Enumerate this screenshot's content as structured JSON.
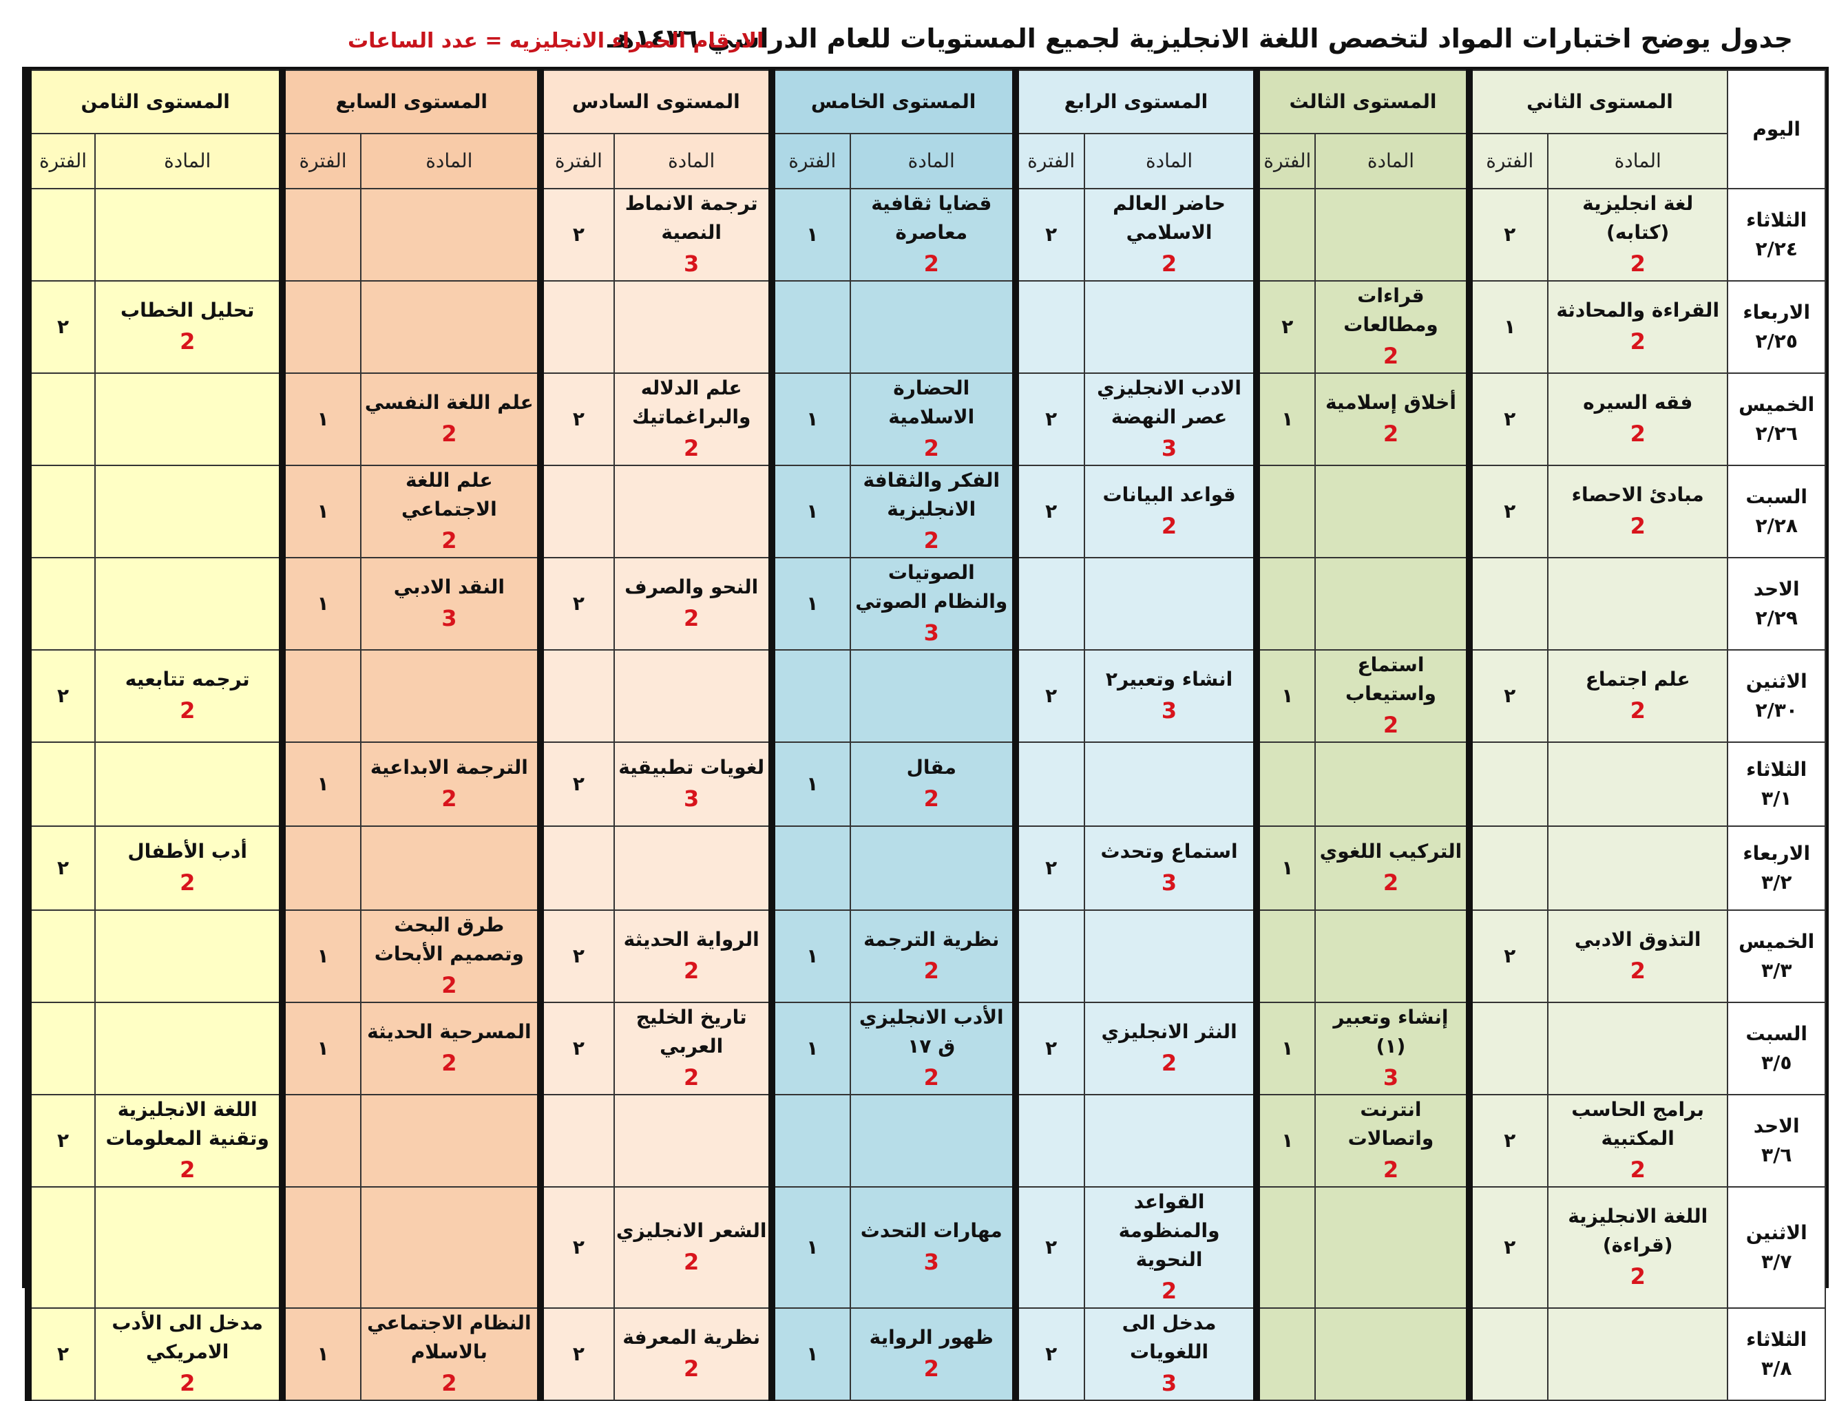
{
  "title": "جدول يوضح اختبارات المواد لتخصص اللغة الانجليزية لجميع المستويات للعام الدراسي ١٤٣٦هـ",
  "note": "الارقام الحمراء الانجليزيه = عدد الساعات",
  "day_header": "اليوم",
  "subject_header": "المادة",
  "period_header": "الفترة",
  "levels": [
    "المستوى الثاني",
    "المستوى الثالث",
    "المستوى الرابع",
    "المستوى الخامس",
    "المستوى السادس",
    "المستوى السابع",
    "المستوى الثامن"
  ],
  "rows": [
    {
      "day": "الثلاثاء",
      "date": "٢/٢٤",
      "cells": [
        {
          "s": "لغة انجليزية (كتابه)",
          "h": "2",
          "p": "٢"
        },
        {
          "s": "",
          "h": "",
          "p": ""
        },
        {
          "s": "حاضر العالم الاسلامي",
          "h": "2",
          "p": "٢"
        },
        {
          "s": "قضايا ثقافية معاصرة",
          "h": "2",
          "p": "١"
        },
        {
          "s": "ترجمة الانماط النصية",
          "h": "3",
          "p": "٢"
        },
        {
          "s": "",
          "h": "",
          "p": ""
        },
        {
          "s": "",
          "h": "",
          "p": ""
        }
      ]
    },
    {
      "day": "الاربعاء",
      "date": "٢/٢٥",
      "cells": [
        {
          "s": "القراءة والمحادثة",
          "h": "2",
          "p": "١"
        },
        {
          "s": "قراءات ومطالعات",
          "h": "2",
          "p": "٢"
        },
        {
          "s": "",
          "h": "",
          "p": ""
        },
        {
          "s": "",
          "h": "",
          "p": ""
        },
        {
          "s": "",
          "h": "",
          "p": ""
        },
        {
          "s": "",
          "h": "",
          "p": ""
        },
        {
          "s": "تحليل الخطاب",
          "h": "2",
          "p": "٢"
        }
      ]
    },
    {
      "day": "الخميس",
      "date": "٢/٢٦",
      "cells": [
        {
          "s": "فقه السيره",
          "h": "2",
          "p": "٢"
        },
        {
          "s": "أخلاق إسلامية",
          "h": "2",
          "p": "١"
        },
        {
          "s": "الادب الانجليزي عصر النهضة",
          "h": "3",
          "p": "٢"
        },
        {
          "s": "الحضارة الاسلامية",
          "h": "2",
          "p": "١"
        },
        {
          "s": "علم الدلاله والبراغماتيك",
          "h": "2",
          "p": "٢"
        },
        {
          "s": "علم اللغة النفسي",
          "h": "2",
          "p": "١"
        },
        {
          "s": "",
          "h": "",
          "p": ""
        }
      ]
    },
    {
      "day": "السبت",
      "date": "٢/٢٨",
      "cells": [
        {
          "s": "مبادئ الاحصاء",
          "h": "2",
          "p": "٢"
        },
        {
          "s": "",
          "h": "",
          "p": ""
        },
        {
          "s": "قواعد البيانات",
          "h": "2",
          "p": "٢"
        },
        {
          "s": "الفكر والثقافة الانجليزية",
          "h": "2",
          "p": "١"
        },
        {
          "s": "",
          "h": "",
          "p": ""
        },
        {
          "s": "علم اللغة الاجتماعي",
          "h": "2",
          "p": "١"
        },
        {
          "s": "",
          "h": "",
          "p": ""
        }
      ]
    },
    {
      "day": "الاحد",
      "date": "٢/٢٩",
      "cells": [
        {
          "s": "",
          "h": "",
          "p": ""
        },
        {
          "s": "",
          "h": "",
          "p": ""
        },
        {
          "s": "",
          "h": "",
          "p": ""
        },
        {
          "s": "الصوتيات والنظام الصوتي",
          "h": "3",
          "p": "١"
        },
        {
          "s": "النحو والصرف",
          "h": "2",
          "p": "٢"
        },
        {
          "s": "النقد الادبي",
          "h": "3",
          "p": "١"
        },
        {
          "s": "",
          "h": "",
          "p": ""
        }
      ]
    },
    {
      "day": "الاثنين",
      "date": "٢/٣٠",
      "cells": [
        {
          "s": "علم اجتماع",
          "h": "2",
          "p": "٢"
        },
        {
          "s": "استماع واستيعاب",
          "h": "2",
          "p": "١"
        },
        {
          "s": "انشاء وتعبير٢",
          "h": "3",
          "p": "٢"
        },
        {
          "s": "",
          "h": "",
          "p": ""
        },
        {
          "s": "",
          "h": "",
          "p": ""
        },
        {
          "s": "",
          "h": "",
          "p": ""
        },
        {
          "s": "ترجمه تتابعيه",
          "h": "2",
          "p": "٢"
        }
      ]
    },
    {
      "day": "الثلاثاء",
      "date": "٣/١",
      "cells": [
        {
          "s": "",
          "h": "",
          "p": ""
        },
        {
          "s": "",
          "h": "",
          "p": ""
        },
        {
          "s": "",
          "h": "",
          "p": ""
        },
        {
          "s": "مقال",
          "h": "2",
          "p": "١"
        },
        {
          "s": "لغويات تطبيقية",
          "h": "3",
          "p": "٢"
        },
        {
          "s": "الترجمة الابداعية",
          "h": "2",
          "p": "١"
        },
        {
          "s": "",
          "h": "",
          "p": ""
        }
      ]
    },
    {
      "day": "الاربعاء",
      "date": "٣/٢",
      "cells": [
        {
          "s": "",
          "h": "",
          "p": ""
        },
        {
          "s": "التركيب اللغوي",
          "h": "2",
          "p": "١"
        },
        {
          "s": "استماع وتحدث",
          "h": "3",
          "p": "٢"
        },
        {
          "s": "",
          "h": "",
          "p": ""
        },
        {
          "s": "",
          "h": "",
          "p": ""
        },
        {
          "s": "",
          "h": "",
          "p": ""
        },
        {
          "s": "أدب الأطفال",
          "h": "2",
          "p": "٢"
        }
      ]
    },
    {
      "day": "الخميس",
      "date": "٣/٣",
      "cells": [
        {
          "s": "التذوق الادبي",
          "h": "2",
          "p": "٢"
        },
        {
          "s": "",
          "h": "",
          "p": ""
        },
        {
          "s": "",
          "h": "",
          "p": ""
        },
        {
          "s": "نظرية الترجمة",
          "h": "2",
          "p": "١"
        },
        {
          "s": "الرواية الحديثة",
          "h": "2",
          "p": "٢"
        },
        {
          "s": "طرق البحث وتصميم الأبحاث",
          "h": "2",
          "p": "١"
        },
        {
          "s": "",
          "h": "",
          "p": ""
        }
      ]
    },
    {
      "day": "السبت",
      "date": "٣/٥",
      "cells": [
        {
          "s": "",
          "h": "",
          "p": ""
        },
        {
          "s": "إنشاء وتعبير (١)",
          "h": "3",
          "p": "١"
        },
        {
          "s": "النثر الانجليزي",
          "h": "2",
          "p": "٢"
        },
        {
          "s": "الأدب الانجليزي ق ١٧",
          "h": "2",
          "p": "١"
        },
        {
          "s": "تاريخ الخليج العربي",
          "h": "2",
          "p": "٢"
        },
        {
          "s": "المسرحية الحديثة",
          "h": "2",
          "p": "١"
        },
        {
          "s": "",
          "h": "",
          "p": ""
        }
      ]
    },
    {
      "day": "الاحد",
      "date": "٣/٦",
      "cells": [
        {
          "s": "برامج الحاسب المكتبية",
          "h": "2",
          "p": "٢"
        },
        {
          "s": "انترنت واتصالات",
          "h": "2",
          "p": "١"
        },
        {
          "s": "",
          "h": "",
          "p": ""
        },
        {
          "s": "",
          "h": "",
          "p": ""
        },
        {
          "s": "",
          "h": "",
          "p": ""
        },
        {
          "s": "",
          "h": "",
          "p": ""
        },
        {
          "s": "اللغة الانجليزية وتقنية المعلومات",
          "h": "2",
          "p": "٢"
        }
      ]
    },
    {
      "day": "الاثنين",
      "date": "٣/٧",
      "cells": [
        {
          "s": "اللغة الانجليزية (قراءة)",
          "h": "2",
          "p": "٢"
        },
        {
          "s": "",
          "h": "",
          "p": ""
        },
        {
          "s": "القواعد والمنظومة النحوية",
          "h": "2",
          "p": "٢"
        },
        {
          "s": "مهارات التحدث",
          "h": "3",
          "p": "١"
        },
        {
          "s": "الشعر الانجليزي",
          "h": "2",
          "p": "٢"
        },
        {
          "s": "",
          "h": "",
          "p": ""
        },
        {
          "s": "",
          "h": "",
          "p": ""
        }
      ]
    },
    {
      "day": "الثلاثاء",
      "date": "٣/٨",
      "cells": [
        {
          "s": "",
          "h": "",
          "p": ""
        },
        {
          "s": "",
          "h": "",
          "p": ""
        },
        {
          "s": "مدخل الى اللغويات",
          "h": "3",
          "p": "٢"
        },
        {
          "s": "ظهور الرواية",
          "h": "2",
          "p": "١"
        },
        {
          "s": "نظرية المعرفة",
          "h": "2",
          "p": "٢"
        },
        {
          "s": "النظام الاجتماعي بالاسلام",
          "h": "2",
          "p": "١"
        },
        {
          "s": "مدخل الى الأدب الامريكي",
          "h": "2",
          "p": "٢"
        }
      ]
    }
  ]
}
